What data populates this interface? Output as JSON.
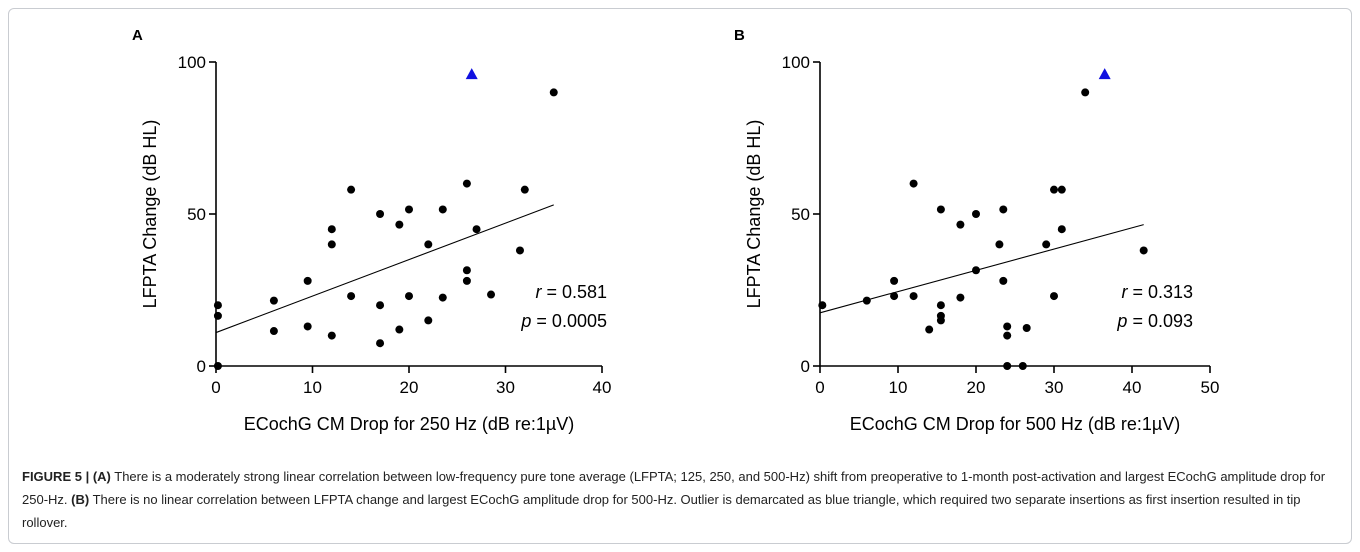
{
  "chart_data": [
    {
      "panel": "A",
      "type": "scatter",
      "xlabel": "ECochG CM Drop for 250 Hz (dB re:1µV)",
      "ylabel": "LFPTA Change (dB HL)",
      "xlim": [
        0,
        40
      ],
      "ylim": [
        0,
        100
      ],
      "xticks": [
        0,
        10,
        20,
        30,
        40
      ],
      "yticks": [
        0,
        50,
        100
      ],
      "points": [
        [
          0.2,
          20
        ],
        [
          0.2,
          16.5
        ],
        [
          0.2,
          0
        ],
        [
          6,
          21.5
        ],
        [
          6,
          11.5
        ],
        [
          9.5,
          28
        ],
        [
          9.5,
          13
        ],
        [
          12,
          45
        ],
        [
          12,
          40
        ],
        [
          12,
          10
        ],
        [
          14,
          58
        ],
        [
          14,
          23
        ],
        [
          17,
          50
        ],
        [
          17,
          20
        ],
        [
          17,
          7.5
        ],
        [
          19,
          46.5
        ],
        [
          19,
          12
        ],
        [
          20,
          51.5
        ],
        [
          20,
          23
        ],
        [
          22,
          40
        ],
        [
          22,
          15
        ],
        [
          23.5,
          51.5
        ],
        [
          23.5,
          22.5
        ],
        [
          26,
          60
        ],
        [
          26,
          31.5
        ],
        [
          26,
          28
        ],
        [
          27,
          45
        ],
        [
          28.5,
          23.5
        ],
        [
          31.5,
          38
        ],
        [
          32,
          58
        ],
        [
          35,
          90
        ]
      ],
      "outlier": [
        26.5,
        96
      ],
      "outlier_color": "#1010e0",
      "point_color": "#000000",
      "fit_line": [
        [
          0,
          11
        ],
        [
          35,
          53
        ]
      ],
      "stats": {
        "r_label": "r",
        "r_value": "= 0.581",
        "p_label": "p",
        "p_value": "= 0.0005"
      }
    },
    {
      "panel": "B",
      "type": "scatter",
      "xlabel": "ECochG CM Drop for 500 Hz (dB re:1µV)",
      "ylabel": "LFPTA Change (dB HL)",
      "xlim": [
        0,
        50
      ],
      "ylim": [
        0,
        100
      ],
      "xticks": [
        0,
        10,
        20,
        30,
        40,
        50
      ],
      "yticks": [
        0,
        50,
        100
      ],
      "points": [
        [
          0.3,
          20
        ],
        [
          6,
          21.5
        ],
        [
          9.5,
          28
        ],
        [
          9.5,
          23
        ],
        [
          12,
          60
        ],
        [
          12,
          23
        ],
        [
          14,
          12
        ],
        [
          15.5,
          51.5
        ],
        [
          15.5,
          20
        ],
        [
          15.5,
          16.5
        ],
        [
          15.5,
          15
        ],
        [
          18,
          46.5
        ],
        [
          18,
          22.5
        ],
        [
          20,
          50
        ],
        [
          20,
          31.5
        ],
        [
          23,
          40
        ],
        [
          23.5,
          51.5
        ],
        [
          23.5,
          28
        ],
        [
          24,
          13
        ],
        [
          24,
          10
        ],
        [
          24,
          0
        ],
        [
          26,
          0
        ],
        [
          26.5,
          12.5
        ],
        [
          29,
          40
        ],
        [
          30,
          58
        ],
        [
          30,
          23
        ],
        [
          31,
          58
        ],
        [
          31,
          45
        ],
        [
          34,
          90
        ],
        [
          41.5,
          38
        ]
      ],
      "outlier": [
        36.5,
        96
      ],
      "outlier_color": "#1010e0",
      "point_color": "#000000",
      "fit_line": [
        [
          0,
          17.5
        ],
        [
          41.5,
          46.5
        ]
      ],
      "stats": {
        "r_label": "r",
        "r_value": "= 0.313",
        "p_label": "p",
        "p_value": "= 0.093"
      }
    }
  ],
  "caption": {
    "figure_label": "FIGURE 5 |",
    "part_a_tag": "(A)",
    "part_a_text": "There is a moderately strong linear correlation between low-frequency pure tone average (LFPTA; 125, 250, and 500-Hz) shift from preoperative to 1-month post-activation and largest ECochG amplitude drop for 250-Hz.",
    "part_b_tag": "(B)",
    "part_b_text": "There is no linear correlation between LFPTA change and largest ECochG amplitude drop for 500-Hz. Outlier is demarcated as blue triangle, which required two separate insertions as first insertion resulted in tip rollover."
  }
}
